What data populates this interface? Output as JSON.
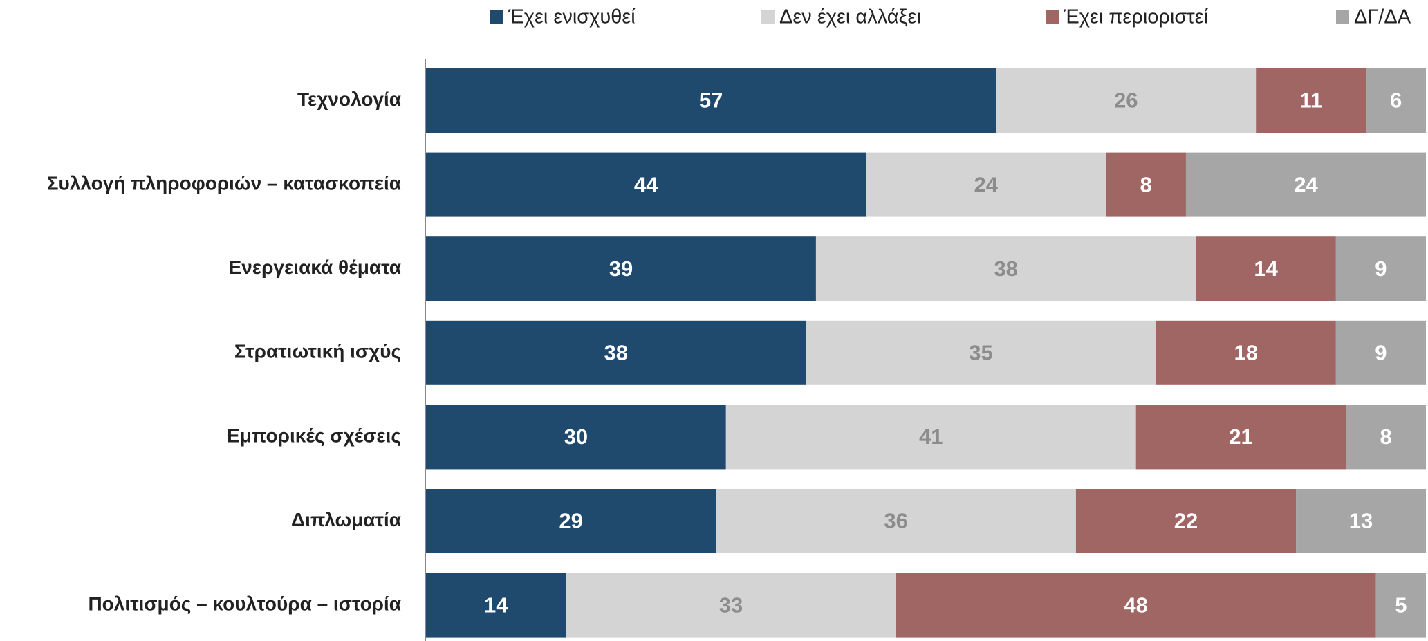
{
  "chart_data": {
    "type": "stacked-bar-horizontal",
    "categories": [
      "Τεχνολογία",
      "Συλλογή πληροφοριών – κατασκοπεία",
      "Ενεργειακά θέματα",
      "Στρατιωτική ισχύς",
      "Εμπορικές σχέσεις",
      "Διπλωματία",
      "Πολιτισμός – κουλτούρα – ιστορία"
    ],
    "series": [
      {
        "name": "Έχει ενισχυθεί",
        "color": "#1f4a6d",
        "values": [
          57,
          44,
          39,
          38,
          30,
          29,
          14
        ]
      },
      {
        "name": "Δεν έχει αλλάξει",
        "color": "#d4d4d4",
        "values": [
          26,
          24,
          38,
          35,
          41,
          36,
          33
        ]
      },
      {
        "name": "Έχει περιοριστεί",
        "color": "#a06664",
        "values": [
          11,
          8,
          14,
          18,
          21,
          22,
          48
        ]
      },
      {
        "name": "ΔΓ/ΔΑ",
        "color": "#a6a6a6",
        "values": [
          6,
          24,
          9,
          9,
          8,
          13,
          5
        ]
      }
    ],
    "xlim": [
      0,
      100
    ]
  }
}
